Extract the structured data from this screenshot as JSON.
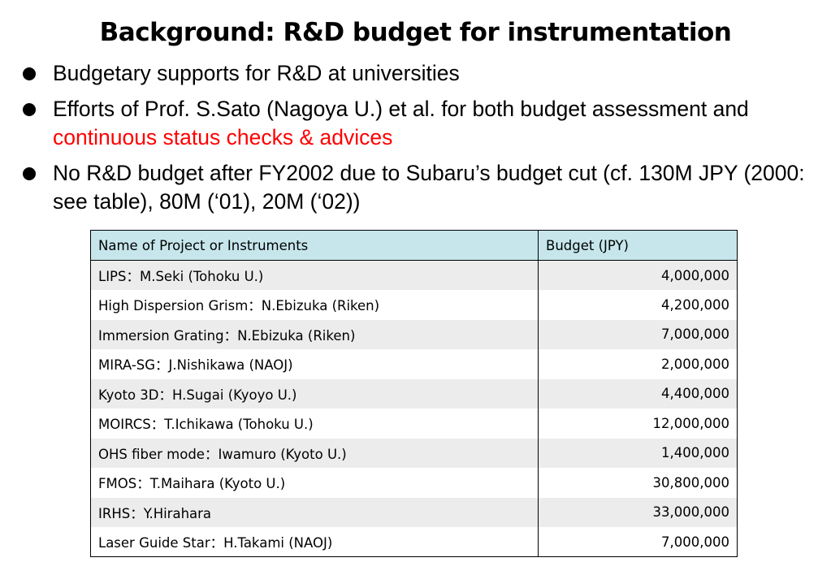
{
  "title": "Background: R&D budget for instrumentation",
  "bullets": [
    {
      "text": "Budgetary supports for R&D at universities"
    },
    {
      "text": "Efforts of Prof. S.Sato (Nagoya U.) et al. for both budget assessment and ",
      "highlight": "continuous status checks & advices"
    },
    {
      "text": "No R&D budget after FY2002 due to Subaru’s budget cut (cf. 130M JPY (2000: see table), 80M (‘01), 20M (‘02))"
    }
  ],
  "highlight_color": "#ff0000",
  "table": {
    "headers": [
      "Name of Project or Instruments",
      "Budget (JPY)"
    ],
    "rows": [
      {
        "name": "LIPS：M.Seki (Tohoku U.)",
        "budget": "4,000,000"
      },
      {
        "name": "High Dispersion Grism：N.Ebizuka (Riken)",
        "budget": "4,200,000"
      },
      {
        "name": "Immersion Grating：N.Ebizuka (Riken)",
        "budget": "7,000,000"
      },
      {
        "name": "MIRA-SG：J.Nishikawa (NAOJ)",
        "budget": "2,000,000"
      },
      {
        "name": "Kyoto 3D：H.Sugai (Kyoyo U.)",
        "budget": "4,400,000"
      },
      {
        "name": "MOIRCS：T.Ichikawa (Tohoku U.)",
        "budget": "12,000,000"
      },
      {
        "name": "OHS fiber mode：Iwamuro (Kyoto U.)",
        "budget": "1,400,000"
      },
      {
        "name": "FMOS：T.Maihara (Kyoto U.)",
        "budget": "30,800,000"
      },
      {
        "name": "IRHS：Y.Hirahara",
        "budget": "33,000,000"
      },
      {
        "name": "Laser Guide Star：H.Takami (NAOJ)",
        "budget": "7,000,000"
      }
    ]
  }
}
